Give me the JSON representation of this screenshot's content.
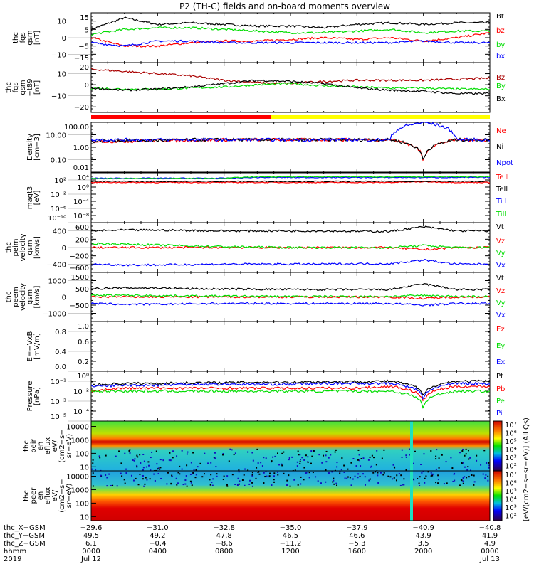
{
  "title": "P2 (TH-C) fields and on-board moments overview",
  "chart_data": {
    "type": "line",
    "x_unit": "hours since 2019 Jul 12 0000",
    "xlim": [
      0,
      24
    ],
    "panels": [
      {
        "id": "fgs_gsm",
        "ylabel": [
          "thc",
          "fgs",
          "gsm",
          "[nT]"
        ],
        "scale": "linear",
        "ylim": [
          -15,
          15
        ],
        "ticks": [
          15,
          10,
          5,
          0,
          -5,
          -10,
          -15
        ],
        "tick_labels": [
          "15",
          "10",
          "5",
          "0",
          "−5",
          "−10",
          "−15"
        ],
        "series": [
          {
            "name": "Bt",
            "color": "#000000",
            "values": [
              5,
              12,
              8,
              9,
              8,
              7,
              7,
              6,
              8,
              9,
              8,
              9,
              9
            ]
          },
          {
            "name": "bz",
            "color": "#ff0000",
            "values": [
              0,
              -5,
              -5,
              -3,
              -2,
              -2,
              -1,
              0,
              -1,
              0,
              -2,
              0,
              3
            ]
          },
          {
            "name": "by",
            "color": "#00dd00",
            "values": [
              2,
              5,
              6,
              6,
              5,
              4,
              3,
              3,
              4,
              5,
              3,
              4,
              4
            ]
          },
          {
            "name": "bx",
            "color": "#0000ff",
            "values": [
              -3,
              -5,
              -2,
              -2,
              -3,
              -3,
              -3,
              -3,
              -3,
              -3,
              -2,
              -3,
              -3
            ]
          }
        ]
      },
      {
        "id": "fgs_gsm_t89",
        "ylabel": [
          "thc",
          "fgs",
          "gsm",
          "−t89",
          "[nT]"
        ],
        "scale": "linear",
        "ylim": [
          -25,
          20
        ],
        "ticks": [
          20,
          10,
          0,
          -10,
          -20
        ],
        "tick_labels": [
          "20",
          "10",
          "0",
          "−10",
          "−20"
        ],
        "series": [
          {
            "name": "Bz",
            "color": "#aa0000",
            "values": [
              14,
              12,
              10,
              8,
              4,
              2,
              1,
              3,
              4,
              4,
              4,
              5,
              6
            ]
          },
          {
            "name": "By",
            "color": "#00dd00",
            "values": [
              -3,
              -4,
              -4,
              -3,
              -2,
              0,
              1,
              -1,
              -2,
              -3,
              -3,
              -4,
              -4
            ]
          },
          {
            "name": "Bx",
            "color": "#000000",
            "values": [
              -3,
              -5,
              -4,
              -2,
              1,
              4,
              3,
              1,
              -3,
              -5,
              -6,
              -8,
              -8
            ]
          }
        ]
      },
      {
        "id": "density",
        "ylabel": [
          "Density",
          "[cm−3]"
        ],
        "scale": "log",
        "ylim": [
          0.01,
          100
        ],
        "ticks": [
          100,
          10,
          1,
          0.1,
          0.01
        ],
        "tick_labels": [
          "100.00",
          "10.00",
          "1.00",
          "0.10",
          "0.01"
        ],
        "series": [
          {
            "name": "Ne",
            "color": "#ff0000",
            "values": [
              3,
              3,
              3.5,
              3.5,
              4,
              4,
              4,
              4,
              4,
              4,
              0.03,
              4,
              4
            ]
          },
          {
            "name": "Ni",
            "color": "#000000",
            "values": [
              3,
              3.5,
              3.5,
              4,
              4,
              4,
              4,
              4,
              4,
              4,
              0.05,
              4,
              4
            ]
          },
          {
            "name": "Npot",
            "color": "#0000ff",
            "values": [
              4,
              4,
              4,
              4,
              4,
              4,
              4,
              4,
              4,
              4,
              100,
              4,
              4
            ]
          }
        ]
      },
      {
        "id": "magt3",
        "ylabel": [
          "magt3",
          "[eV]"
        ],
        "scale": "log",
        "ylim": [
          1e-10,
          10000
        ],
        "ticks": [
          10000,
          100,
          1,
          0.01,
          0.0001,
          1e-06,
          1e-08,
          1e-10
        ],
        "tick_labels": [
          "10⁴",
          "10²",
          "10⁰",
          "10⁻²",
          "10⁻⁴",
          "10⁻⁶",
          "10⁻⁸",
          "10⁻¹⁰"
        ],
        "series": [
          {
            "name": "Te⊥",
            "color": "#ff0000",
            "values": [
              20,
              20,
              20,
              20,
              20,
              20,
              20,
              20,
              20,
              20,
              30,
              20,
              20
            ]
          },
          {
            "name": "Tell",
            "color": "#000000",
            "values": [
              40,
              40,
              40,
              40,
              40,
              40,
              40,
              40,
              40,
              40,
              40,
              40,
              40
            ]
          },
          {
            "name": "Ti⊥",
            "color": "#0000ff",
            "values": [
              300,
              300,
              300,
              300,
              300,
              500,
              500,
              500,
              500,
              500,
              500,
              500,
              500
            ]
          },
          {
            "name": "Till",
            "color": "#00dd00",
            "values": [
              250,
              250,
              250,
              250,
              250,
              800,
              800,
              800,
              800,
              800,
              800,
              800,
              800
            ]
          }
        ]
      },
      {
        "id": "peim_velocity",
        "ylabel": [
          "thc",
          "peim",
          "velocity",
          "gsm",
          "[km/s]"
        ],
        "scale": "linear",
        "ylim": [
          -600,
          600
        ],
        "ticks": [
          600,
          400,
          200,
          0,
          -200,
          -400,
          -600
        ],
        "tick_labels": [
          "600",
          "400",
          "200",
          "0",
          "−200",
          "−400",
          "−600"
        ],
        "series": [
          {
            "name": "Vt",
            "color": "#000000",
            "values": [
              400,
              420,
              420,
              410,
              400,
              400,
              400,
              400,
              390,
              390,
              500,
              400,
              400
            ]
          },
          {
            "name": "Vz",
            "color": "#ff0000",
            "values": [
              0,
              0,
              0,
              0,
              0,
              0,
              0,
              0,
              0,
              0,
              -50,
              0,
              0
            ]
          },
          {
            "name": "Vy",
            "color": "#00dd00",
            "values": [
              100,
              80,
              60,
              40,
              20,
              10,
              0,
              0,
              0,
              0,
              50,
              0,
              0
            ]
          },
          {
            "name": "Vx",
            "color": "#0000ff",
            "values": [
              -400,
              -420,
              -420,
              -410,
              -400,
              -400,
              -400,
              -400,
              -390,
              -390,
              -300,
              -400,
              -400
            ]
          }
        ]
      },
      {
        "id": "peem_velocity",
        "ylabel": [
          "thc",
          "peem",
          "velocity",
          "gsm",
          "[km/s]"
        ],
        "scale": "linear",
        "ylim": [
          -1500,
          1500
        ],
        "ticks": [
          1500,
          1000,
          500,
          0,
          -500,
          -1000
        ],
        "tick_labels": [
          "1500",
          "1000",
          "500",
          "0",
          "−500",
          "−1000"
        ],
        "series": [
          {
            "name": "Vt",
            "color": "#000000",
            "values": [
              500,
              550,
              550,
              500,
              480,
              470,
              460,
              450,
              450,
              450,
              800,
              450,
              450
            ]
          },
          {
            "name": "Vz",
            "color": "#ff0000",
            "values": [
              0,
              0,
              0,
              0,
              0,
              0,
              0,
              0,
              0,
              0,
              -100,
              0,
              0
            ]
          },
          {
            "name": "Vy",
            "color": "#00dd00",
            "values": [
              100,
              100,
              80,
              60,
              50,
              40,
              30,
              30,
              30,
              30,
              100,
              30,
              30
            ]
          },
          {
            "name": "Vx",
            "color": "#0000ff",
            "values": [
              -400,
              -450,
              -450,
              -420,
              -400,
              -400,
              -400,
              -400,
              -400,
              -400,
              -500,
              -400,
              -400
            ]
          }
        ]
      },
      {
        "id": "efield",
        "ylabel": [
          "E=−VxB",
          "[mV/m]"
        ],
        "scale": "linear",
        "ylim": [
          0,
          1
        ],
        "ticks": [
          1.0,
          0.8,
          0.6,
          0.4,
          0.2,
          0.0
        ],
        "tick_labels": [
          "1.0",
          "0.8",
          "0.6",
          "0.4",
          "0.2",
          "0.0"
        ],
        "series": [
          {
            "name": "Ez",
            "color": "#ff0000",
            "values": []
          },
          {
            "name": "Ey",
            "color": "#00dd00",
            "values": []
          },
          {
            "name": "Ex",
            "color": "#0000ff",
            "values": []
          }
        ]
      },
      {
        "id": "pressure",
        "ylabel": [
          "Pressure",
          "[nPa]"
        ],
        "scale": "log",
        "ylim": [
          1e-05,
          1
        ],
        "ticks": [
          1,
          0.1,
          0.01,
          0.001,
          0.0001,
          1e-05
        ],
        "tick_labels": [
          "10⁰",
          "10⁻¹",
          "10⁻²",
          "10⁻³",
          "10⁻⁴",
          "10⁻⁵"
        ],
        "series": [
          {
            "name": "Pt",
            "color": "#000000",
            "values": [
              0.04,
              0.06,
              0.06,
              0.07,
              0.07,
              0.08,
              0.08,
              0.09,
              0.09,
              0.1,
              0.002,
              0.1,
              0.1
            ]
          },
          {
            "name": "Pb",
            "color": "#ff0000",
            "values": [
              0.01,
              0.02,
              0.02,
              0.02,
              0.02,
              0.02,
              0.02,
              0.02,
              0.02,
              0.03,
              0.0005,
              0.03,
              0.03
            ]
          },
          {
            "name": "Pe",
            "color": "#00dd00",
            "values": [
              0.01,
              0.01,
              0.01,
              0.01,
              0.01,
              0.01,
              0.01,
              0.01,
              0.01,
              0.01,
              0.0001,
              0.01,
              0.01
            ]
          },
          {
            "name": "Pi",
            "color": "#0000ff",
            "values": [
              0.03,
              0.04,
              0.04,
              0.05,
              0.05,
              0.05,
              0.05,
              0.06,
              0.06,
              0.06,
              0.001,
              0.06,
              0.06
            ]
          }
        ]
      }
    ],
    "mode_bar": {
      "segments": [
        {
          "from": 0,
          "to": 10.8,
          "color": "#ff0000"
        },
        {
          "from": 10.8,
          "to": 24,
          "color": "#ffff00"
        }
      ]
    },
    "spectrograms": [
      {
        "id": "peir",
        "ylabel": [
          "thc",
          "peir",
          "en",
          "eflux",
          "eV/",
          "(cm2−s−",
          "sr−eV)"
        ],
        "ylim": [
          5,
          25000
        ],
        "ticks": [
          10000,
          1000,
          100,
          10
        ],
        "tick_labels": [
          "10000",
          "1000",
          "100",
          "10"
        ],
        "peak_energy": 1000
      },
      {
        "id": "peer",
        "ylabel": [
          "thc",
          "peer",
          "en",
          "eflux",
          "eV/",
          "(cm2−s−",
          "sr−eV)"
        ],
        "ylim": [
          5,
          25000
        ],
        "ticks": [
          10000,
          1000,
          100,
          10
        ],
        "tick_labels": [
          "10000",
          "1000",
          "100",
          "10"
        ],
        "peak_energy": 30
      }
    ],
    "colorbar": {
      "labels": [
        "10⁷",
        "10⁶",
        "10⁵",
        "10⁴",
        "10³",
        "10²"
      ],
      "unit": "[eV/(cm2−s−sr−eV)] (All Qs)"
    },
    "x_axis": {
      "row_labels": [
        "thc_X−GSM",
        "thc_Y−GSM",
        "thc_Z−GSM",
        "hhmm",
        "2019"
      ],
      "ticks": [
        {
          "hour": 0,
          "rows": [
            "−29.6",
            "49.5",
            "6.1",
            "0000",
            "Jul 12"
          ]
        },
        {
          "hour": 4,
          "rows": [
            "−31.0",
            "49.2",
            "−0.4",
            "0400",
            ""
          ]
        },
        {
          "hour": 8,
          "rows": [
            "−32.8",
            "47.8",
            "−8.6",
            "0800",
            ""
          ]
        },
        {
          "hour": 12,
          "rows": [
            "−35.0",
            "46.5",
            "−11.2",
            "1200",
            ""
          ]
        },
        {
          "hour": 16,
          "rows": [
            "−37.9",
            "46.6",
            "−5.3",
            "1600",
            ""
          ]
        },
        {
          "hour": 20,
          "rows": [
            "−40.9",
            "43.9",
            "3.5",
            "2000",
            ""
          ]
        },
        {
          "hour": 24,
          "rows": [
            "−40.8",
            "41.9",
            "4.9",
            "0000",
            "Jul 13"
          ]
        }
      ]
    }
  }
}
